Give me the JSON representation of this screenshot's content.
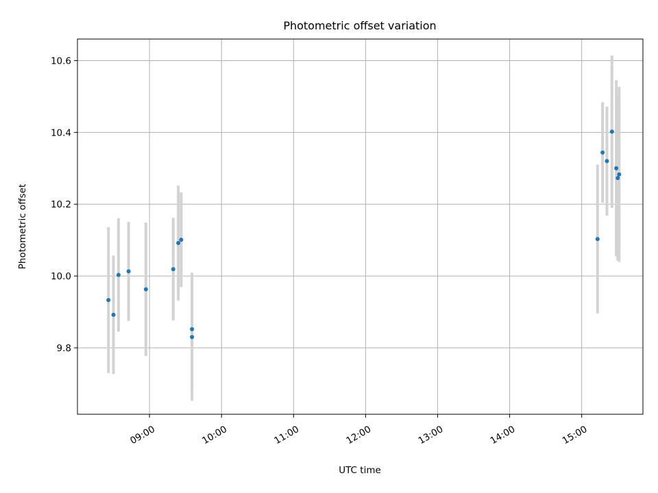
{
  "chart_data": {
    "type": "scatter",
    "title": "Photometric offset variation",
    "xlabel": "UTC time",
    "ylabel": "Photometric offset",
    "x_unit": "UTC time of day (hours)",
    "xlim": [
      8.0,
      15.85
    ],
    "ylim": [
      9.615,
      10.66
    ],
    "grid": true,
    "x_ticks": [
      {
        "value": 9,
        "label": "09:00"
      },
      {
        "value": 10,
        "label": "10:00"
      },
      {
        "value": 11,
        "label": "11:00"
      },
      {
        "value": 12,
        "label": "12:00"
      },
      {
        "value": 13,
        "label": "13:00"
      },
      {
        "value": 14,
        "label": "14:00"
      },
      {
        "value": 15,
        "label": "15:00"
      }
    ],
    "y_ticks": [
      {
        "value": 9.8,
        "label": "9.8"
      },
      {
        "value": 10.0,
        "label": "10.0"
      },
      {
        "value": 10.2,
        "label": "10.2"
      },
      {
        "value": 10.4,
        "label": "10.4"
      },
      {
        "value": 10.6,
        "label": "10.6"
      }
    ],
    "point_color": "#1f77b4",
    "errorbar_color": "#d3d3d3",
    "points": [
      {
        "x": 8.43,
        "y": 9.933,
        "err": 0.203
      },
      {
        "x": 8.5,
        "y": 9.892,
        "err": 0.165
      },
      {
        "x": 8.57,
        "y": 10.003,
        "err": 0.158
      },
      {
        "x": 8.71,
        "y": 10.013,
        "err": 0.138
      },
      {
        "x": 8.95,
        "y": 9.963,
        "err": 0.186
      },
      {
        "x": 9.33,
        "y": 10.019,
        "err": 0.143
      },
      {
        "x": 9.4,
        "y": 10.092,
        "err": 0.16
      },
      {
        "x": 9.44,
        "y": 10.101,
        "err": 0.132
      },
      {
        "x": 9.59,
        "y": 9.852,
        "err": 0.157
      },
      {
        "x": 9.59,
        "y": 9.83,
        "err": 0.177
      },
      {
        "x": 15.22,
        "y": 10.103,
        "err": 0.207
      },
      {
        "x": 15.29,
        "y": 10.344,
        "err": 0.14
      },
      {
        "x": 15.35,
        "y": 10.32,
        "err": 0.152
      },
      {
        "x": 15.42,
        "y": 10.402,
        "err": 0.212
      },
      {
        "x": 15.48,
        "y": 10.3,
        "err": 0.245
      },
      {
        "x": 15.5,
        "y": 10.273,
        "err": 0.23
      },
      {
        "x": 15.52,
        "y": 10.283,
        "err": 0.244
      }
    ]
  }
}
